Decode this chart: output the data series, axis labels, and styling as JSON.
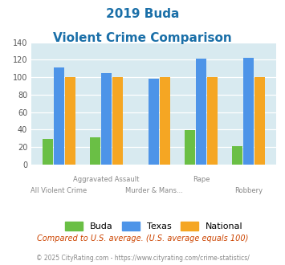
{
  "title_line1": "2019 Buda",
  "title_line2": "Violent Crime Comparison",
  "categories": [
    "All Violent Crime",
    "Aggravated Assault",
    "Murder & Mans...",
    "Rape",
    "Robbery"
  ],
  "cat_labels_row1": [
    "",
    "Aggravated Assault",
    "",
    "Rape",
    ""
  ],
  "cat_labels_row2": [
    "All Violent Crime",
    "",
    "Murder & Mans...",
    "",
    "Robbery"
  ],
  "buda": [
    29,
    31,
    0,
    39,
    21
  ],
  "texas": [
    111,
    105,
    98,
    121,
    122
  ],
  "national": [
    100,
    100,
    100,
    100,
    100
  ],
  "buda_color": "#6abf45",
  "texas_color": "#4d94e8",
  "national_color": "#f5a623",
  "bg_color": "#d8eaf0",
  "ylim": [
    0,
    140
  ],
  "yticks": [
    0,
    20,
    40,
    60,
    80,
    100,
    120,
    140
  ],
  "footnote1": "Compared to U.S. average. (U.S. average equals 100)",
  "footnote2": "© 2025 CityRating.com - https://www.cityrating.com/crime-statistics/",
  "title_color": "#1a6fa8",
  "footnote1_color": "#cc4400",
  "footnote2_color": "#888888",
  "legend_labels": [
    "Buda",
    "Texas",
    "National"
  ],
  "bar_width": 0.22,
  "bar_gap": 0.02
}
